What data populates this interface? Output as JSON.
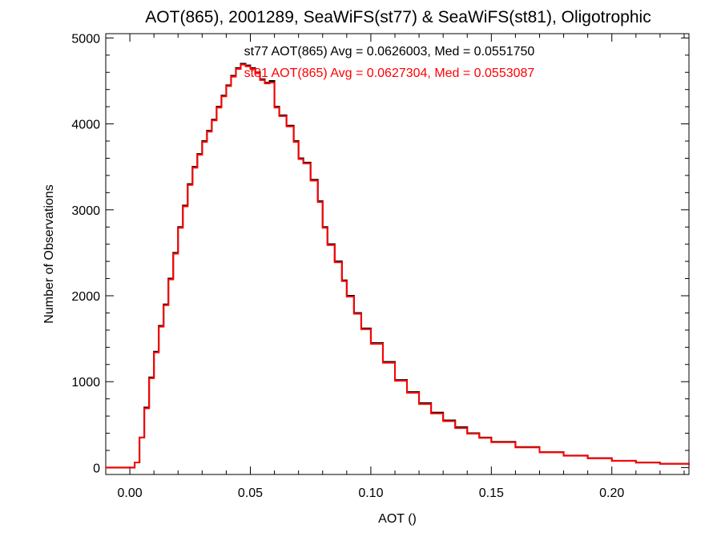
{
  "chart_data": {
    "type": "line",
    "title": "AOT(865), 2001289, SeaWiFS(st77) & SeaWiFS(st81), Oligotrophic",
    "xlabel": "AOT ()",
    "ylabel": "Number of Observations",
    "xlim": [
      -0.01,
      0.232
    ],
    "ylim": [
      -80,
      5050
    ],
    "x_ticks": [
      0.0,
      0.05,
      0.1,
      0.15,
      0.2
    ],
    "x_tick_labels": [
      "0.00",
      "0.05",
      "0.10",
      "0.15",
      "0.20"
    ],
    "y_ticks": [
      0,
      1000,
      2000,
      3000,
      4000,
      5000
    ],
    "y_tick_labels": [
      "0",
      "1000",
      "2000",
      "3000",
      "4000",
      "5000"
    ],
    "grid": false,
    "steps": "histogram",
    "annotations": [
      "st77 AOT(865) Avg = 0.0626003, Med = 0.0551750",
      "st81 AOT(865) Avg = 0.0627304, Med = 0.0553087"
    ],
    "series": [
      {
        "color": "#000000",
        "points": [
          [
            -0.01,
            0
          ],
          [
            0.001,
            0
          ],
          [
            0.002,
            60
          ],
          [
            0.004,
            350
          ],
          [
            0.006,
            700
          ],
          [
            0.008,
            1050
          ],
          [
            0.01,
            1350
          ],
          [
            0.012,
            1650
          ],
          [
            0.014,
            1900
          ],
          [
            0.016,
            2200
          ],
          [
            0.018,
            2500
          ],
          [
            0.02,
            2800
          ],
          [
            0.022,
            3050
          ],
          [
            0.024,
            3300
          ],
          [
            0.026,
            3500
          ],
          [
            0.028,
            3650
          ],
          [
            0.03,
            3800
          ],
          [
            0.032,
            3920
          ],
          [
            0.034,
            4050
          ],
          [
            0.036,
            4200
          ],
          [
            0.038,
            4330
          ],
          [
            0.04,
            4450
          ],
          [
            0.042,
            4560
          ],
          [
            0.044,
            4650
          ],
          [
            0.046,
            4700
          ],
          [
            0.048,
            4680
          ],
          [
            0.05,
            4650
          ],
          [
            0.052,
            4600
          ],
          [
            0.054,
            4520
          ],
          [
            0.056,
            4480
          ],
          [
            0.058,
            4500
          ],
          [
            0.06,
            4200
          ],
          [
            0.062,
            4100
          ],
          [
            0.065,
            3980
          ],
          [
            0.068,
            3800
          ],
          [
            0.07,
            3600
          ],
          [
            0.072,
            3550
          ],
          [
            0.075,
            3350
          ],
          [
            0.078,
            3100
          ],
          [
            0.08,
            2800
          ],
          [
            0.082,
            2600
          ],
          [
            0.085,
            2400
          ],
          [
            0.088,
            2180
          ],
          [
            0.09,
            2000
          ],
          [
            0.093,
            1800
          ],
          [
            0.096,
            1620
          ],
          [
            0.1,
            1450
          ],
          [
            0.105,
            1230
          ],
          [
            0.11,
            1020
          ],
          [
            0.115,
            880
          ],
          [
            0.12,
            750
          ],
          [
            0.125,
            640
          ],
          [
            0.13,
            550
          ],
          [
            0.135,
            470
          ],
          [
            0.14,
            400
          ],
          [
            0.145,
            350
          ],
          [
            0.15,
            300
          ],
          [
            0.16,
            240
          ],
          [
            0.17,
            180
          ],
          [
            0.18,
            140
          ],
          [
            0.19,
            110
          ],
          [
            0.2,
            80
          ],
          [
            0.21,
            60
          ],
          [
            0.22,
            45
          ],
          [
            0.232,
            30
          ]
        ]
      },
      {
        "color": "#ff0000",
        "points": [
          [
            -0.01,
            0
          ],
          [
            0.001,
            0
          ],
          [
            0.002,
            60
          ],
          [
            0.004,
            350
          ],
          [
            0.006,
            690
          ],
          [
            0.008,
            1040
          ],
          [
            0.01,
            1340
          ],
          [
            0.012,
            1640
          ],
          [
            0.014,
            1890
          ],
          [
            0.016,
            2190
          ],
          [
            0.018,
            2490
          ],
          [
            0.02,
            2790
          ],
          [
            0.022,
            3040
          ],
          [
            0.024,
            3290
          ],
          [
            0.026,
            3490
          ],
          [
            0.028,
            3640
          ],
          [
            0.03,
            3790
          ],
          [
            0.032,
            3910
          ],
          [
            0.034,
            4040
          ],
          [
            0.036,
            4190
          ],
          [
            0.038,
            4320
          ],
          [
            0.04,
            4440
          ],
          [
            0.042,
            4550
          ],
          [
            0.044,
            4640
          ],
          [
            0.046,
            4690
          ],
          [
            0.048,
            4670
          ],
          [
            0.05,
            4640
          ],
          [
            0.052,
            4590
          ],
          [
            0.054,
            4510
          ],
          [
            0.056,
            4470
          ],
          [
            0.058,
            4480
          ],
          [
            0.06,
            4190
          ],
          [
            0.062,
            4090
          ],
          [
            0.065,
            3970
          ],
          [
            0.068,
            3790
          ],
          [
            0.07,
            3590
          ],
          [
            0.072,
            3540
          ],
          [
            0.075,
            3340
          ],
          [
            0.078,
            3090
          ],
          [
            0.08,
            2790
          ],
          [
            0.082,
            2590
          ],
          [
            0.085,
            2390
          ],
          [
            0.088,
            2170
          ],
          [
            0.09,
            1990
          ],
          [
            0.093,
            1790
          ],
          [
            0.096,
            1610
          ],
          [
            0.1,
            1440
          ],
          [
            0.105,
            1220
          ],
          [
            0.11,
            1010
          ],
          [
            0.115,
            870
          ],
          [
            0.12,
            740
          ],
          [
            0.125,
            630
          ],
          [
            0.13,
            540
          ],
          [
            0.135,
            460
          ],
          [
            0.14,
            395
          ],
          [
            0.145,
            345
          ],
          [
            0.15,
            295
          ],
          [
            0.16,
            235
          ],
          [
            0.17,
            178
          ],
          [
            0.18,
            138
          ],
          [
            0.19,
            108
          ],
          [
            0.2,
            78
          ],
          [
            0.21,
            58
          ],
          [
            0.22,
            44
          ],
          [
            0.232,
            29
          ]
        ]
      }
    ]
  }
}
